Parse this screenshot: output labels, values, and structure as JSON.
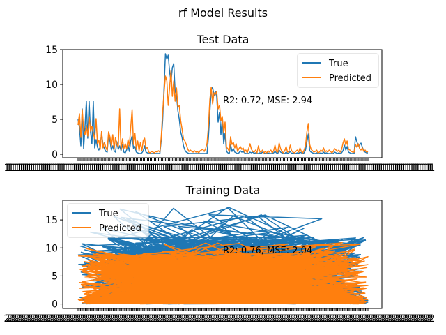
{
  "chart_data": {
    "suptitle": "rf Model Results",
    "type": "line",
    "panels": [
      {
        "title": "Test Data",
        "ylim": [
          -0.5,
          15
        ],
        "yticks": [
          0,
          5,
          10,
          15
        ],
        "xtick_label_overlap": "1",
        "xtick_count": 210,
        "annotation": "R2: 0.72, MSE: 2.94",
        "legend": {
          "placement": "upper right",
          "entries": [
            "True",
            "Predicted"
          ]
        },
        "series": [
          {
            "name": "True",
            "color": "#1f77b4",
            "values": [
              5.0,
              3.8,
              1.2,
              6.5,
              0.8,
              4.0,
              7.6,
              2.3,
              7.6,
              3.2,
              1.5,
              7.6,
              0.9,
              2.1,
              1.0,
              0.6,
              1.1,
              3.0,
              1.4,
              0.8,
              0.4,
              0.3,
              2.8,
              1.9,
              0.6,
              1.2,
              0.5,
              0.3,
              1.8,
              0.7,
              1.2,
              0.5,
              1.4,
              0.3,
              0.2,
              0.6,
              1.3,
              0.4,
              1.9,
              2.6,
              0.8,
              1.1,
              0.3,
              0.2,
              0.1,
              0.1,
              0.2,
              0.5,
              1.2,
              0.3,
              0.2,
              0.1,
              0.1,
              0.1,
              0.1,
              0.1,
              0.1,
              0.1,
              0.1,
              0.1,
              2.0,
              4.8,
              9.5,
              14.4,
              13.6,
              14.2,
              11.8,
              10.4,
              12.4,
              13.0,
              9.0,
              8.5,
              6.2,
              5.0,
              3.2,
              2.4,
              1.2,
              0.6,
              0.3,
              0.2,
              0.1,
              0.1,
              0.1,
              0.1,
              0.1,
              0.1,
              0.1,
              0.1,
              0.1,
              0.1,
              0.1,
              0.1,
              0.1,
              0.1,
              2.4,
              6.0,
              9.2,
              9.6,
              8.4,
              9.0,
              8.2,
              4.6,
              6.0,
              2.8,
              5.2,
              1.5,
              3.0,
              0.4,
              0.2,
              0.1,
              1.4,
              0.4,
              0.8,
              0.3,
              0.2,
              0.1,
              0.2,
              0.5,
              0.3,
              0.4,
              0.2,
              0.1,
              0.1,
              0.1,
              0.3,
              0.2,
              0.3,
              0.1,
              0.2,
              0.1,
              0.1,
              0.2,
              0.1,
              0.3,
              0.2,
              0.1,
              0.1,
              0.2,
              0.1,
              0.1,
              0.1,
              0.2,
              0.4,
              0.2,
              0.1,
              0.6,
              0.3,
              0.2,
              0.1,
              0.1,
              0.3,
              0.1,
              0.2,
              0.4,
              0.1,
              0.2,
              0.1,
              0.1,
              0.2,
              0.1,
              0.3,
              0.2,
              0.1,
              0.2,
              0.6,
              1.8,
              2.9,
              0.5,
              0.3,
              0.2,
              0.1,
              0.1,
              0.2,
              0.1,
              0.1,
              0.2,
              0.1,
              0.3,
              0.1,
              0.2,
              0.1,
              0.1,
              0.1,
              0.1,
              0.1,
              0.3,
              0.2,
              0.1,
              0.2,
              0.1,
              0.2,
              0.5,
              1.3,
              0.6,
              1.1,
              0.3,
              0.2,
              0.1,
              0.1,
              0.1,
              2.5,
              1.8,
              1.2,
              1.3,
              1.6,
              1.0,
              0.5,
              0.3,
              0.2,
              0.2
            ]
          },
          {
            "name": "Predicted",
            "color": "#ff7f0e",
            "values": [
              4.2,
              5.8,
              2.4,
              6.4,
              3.5,
              2.8,
              4.1,
              2.6,
              5.4,
              3.3,
              4.0,
              3.0,
              2.2,
              5.1,
              1.5,
              2.0,
              0.7,
              3.3,
              0.9,
              1.7,
              1.0,
              0.5,
              3.2,
              2.5,
              1.1,
              2.8,
              0.7,
              2.4,
              1.5,
              1.0,
              6.5,
              0.6,
              2.2,
              0.8,
              1.5,
              0.8,
              2.1,
              1.2,
              3.9,
              6.4,
              1.4,
              3.0,
              0.7,
              1.9,
              0.5,
              1.7,
              0.5,
              2.0,
              2.3,
              0.8,
              1.0,
              0.3,
              0.2,
              0.4,
              0.3,
              0.2,
              0.4,
              0.3,
              0.5,
              0.3,
              2.5,
              6.0,
              8.8,
              11.2,
              10.5,
              7.0,
              9.6,
              12.0,
              8.3,
              10.5,
              7.6,
              9.5,
              6.7,
              7.0,
              4.8,
              3.6,
              2.2,
              1.9,
              1.4,
              0.8,
              0.4,
              0.6,
              0.4,
              0.3,
              0.5,
              0.3,
              0.4,
              0.2,
              0.5,
              0.6,
              0.7,
              0.4,
              0.8,
              1.6,
              4.0,
              7.8,
              9.6,
              7.2,
              8.8,
              8.6,
              9.0,
              6.5,
              7.0,
              4.8,
              5.4,
              3.1,
              4.6,
              1.0,
              0.8,
              0.4,
              2.5,
              1.4,
              1.7,
              0.9,
              1.5,
              0.4,
              0.8,
              1.1,
              0.7,
              0.9,
              0.3,
              0.6,
              0.2,
              0.8,
              1.5,
              0.7,
              0.4,
              0.3,
              0.6,
              0.2,
              1.2,
              0.4,
              0.3,
              0.6,
              0.2,
              0.4,
              0.2,
              0.5,
              0.3,
              0.6,
              0.2,
              0.5,
              1.3,
              0.4,
              0.3,
              1.6,
              0.8,
              0.4,
              0.2,
              0.5,
              1.1,
              0.3,
              0.4,
              1.3,
              0.5,
              0.3,
              0.2,
              0.4,
              0.6,
              0.3,
              0.9,
              0.4,
              0.2,
              0.6,
              1.2,
              3.2,
              4.4,
              1.4,
              0.7,
              0.5,
              0.3,
              0.4,
              0.6,
              0.2,
              0.3,
              0.6,
              0.4,
              0.9,
              0.3,
              0.5,
              0.3,
              0.6,
              0.4,
              0.2,
              0.4,
              0.8,
              0.6,
              0.4,
              0.6,
              0.3,
              0.7,
              1.6,
              2.2,
              1.3,
              1.9,
              0.7,
              0.6,
              0.4,
              0.3,
              0.3,
              1.4,
              1.0,
              1.5,
              0.8,
              0.6,
              0.9,
              0.4,
              0.6,
              0.3,
              0.4
            ]
          }
        ]
      },
      {
        "title": "Training Data",
        "ylim": [
          -0.8,
          18.5
        ],
        "yticks": [
          0,
          5,
          10,
          15
        ],
        "xtick_label_overlap": "2",
        "xtick_count": 240,
        "annotation": "R2: 0.76, MSE: 2.04",
        "legend": {
          "placement": "upper left",
          "entries": [
            "True",
            "Predicted"
          ]
        },
        "series": [
          {
            "name": "True",
            "color": "#1f77b4",
            "points": 1000,
            "max": 18.2,
            "typical_range": [
              0,
              12
            ]
          },
          {
            "name": "Predicted",
            "color": "#ff7f0e",
            "points": 1000,
            "max": 11.0,
            "typical_range": [
              0,
              9
            ]
          }
        ]
      }
    ]
  }
}
